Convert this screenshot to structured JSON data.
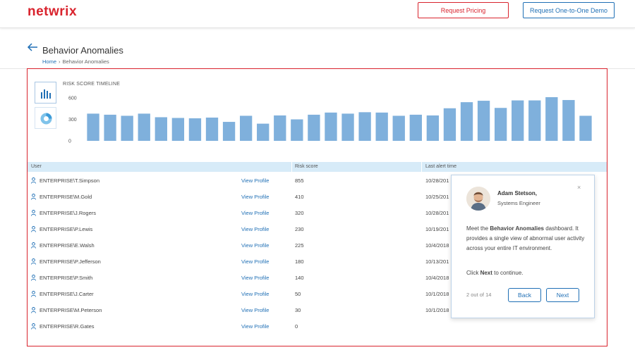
{
  "header": {
    "logo": "netwrix",
    "request_pricing": "Request Pricing",
    "request_demo": "Request One-to-One Demo"
  },
  "page": {
    "title": "Behavior Anomalies",
    "breadcrumb_home": "Home",
    "breadcrumb_sep": "›",
    "breadcrumb_current": "Behavior Anomalies"
  },
  "chart_data": {
    "type": "bar",
    "title": "RISK SCORE TIMELINE",
    "yticks": [
      "600",
      "300",
      "0"
    ],
    "ylim": [
      0,
      600
    ],
    "values": [
      380,
      365,
      350,
      380,
      330,
      320,
      315,
      325,
      265,
      350,
      240,
      355,
      300,
      365,
      395,
      380,
      400,
      395,
      350,
      365,
      355,
      455,
      540,
      560,
      460,
      565,
      565,
      610,
      570,
      350
    ],
    "color": "#7fb0dc"
  },
  "table": {
    "headers": [
      "User",
      "Risk score",
      "Last alert time"
    ],
    "view_profile": "View Profile",
    "rows": [
      {
        "user": "ENTERPRISE\\T.Simpson",
        "score": "855",
        "time": "10/28/201"
      },
      {
        "user": "ENTERPRISE\\M.Gold",
        "score": "410",
        "time": "10/25/201"
      },
      {
        "user": "ENTERPRISE\\J.Rogers",
        "score": "320",
        "time": "10/28/201"
      },
      {
        "user": "ENTERPRISE\\P.Lewis",
        "score": "230",
        "time": "10/19/201"
      },
      {
        "user": "ENTERPRISE\\E.Walsh",
        "score": "225",
        "time": "10/4/2018"
      },
      {
        "user": "ENTERPRISE\\P.Jefferson",
        "score": "180",
        "time": "10/13/201"
      },
      {
        "user": "ENTERPRISE\\P.Smith",
        "score": "140",
        "time": "10/4/2018"
      },
      {
        "user": "ENTERPRISE\\J.Carter",
        "score": "50",
        "time": "10/1/2018"
      },
      {
        "user": "ENTERPRISE\\M.Peterson",
        "score": "30",
        "time": "10/1/2018"
      },
      {
        "user": "ENTERPRISE\\R.Gates",
        "score": "0",
        "time": ""
      }
    ]
  },
  "popup": {
    "name": "Adam Stetson,",
    "role": "Systems Engineer",
    "close": "×",
    "text_pre": "Meet the ",
    "text_bold": "Behavior Anomalies",
    "text_post": " dashboard. It provides a single view of abnormal user activity across your entire IT environment.",
    "click_pre": "Click ",
    "click_bold": "Next",
    "click_post": " to continue.",
    "counter": "2 out of 14",
    "back": "Back",
    "next": "Next"
  }
}
